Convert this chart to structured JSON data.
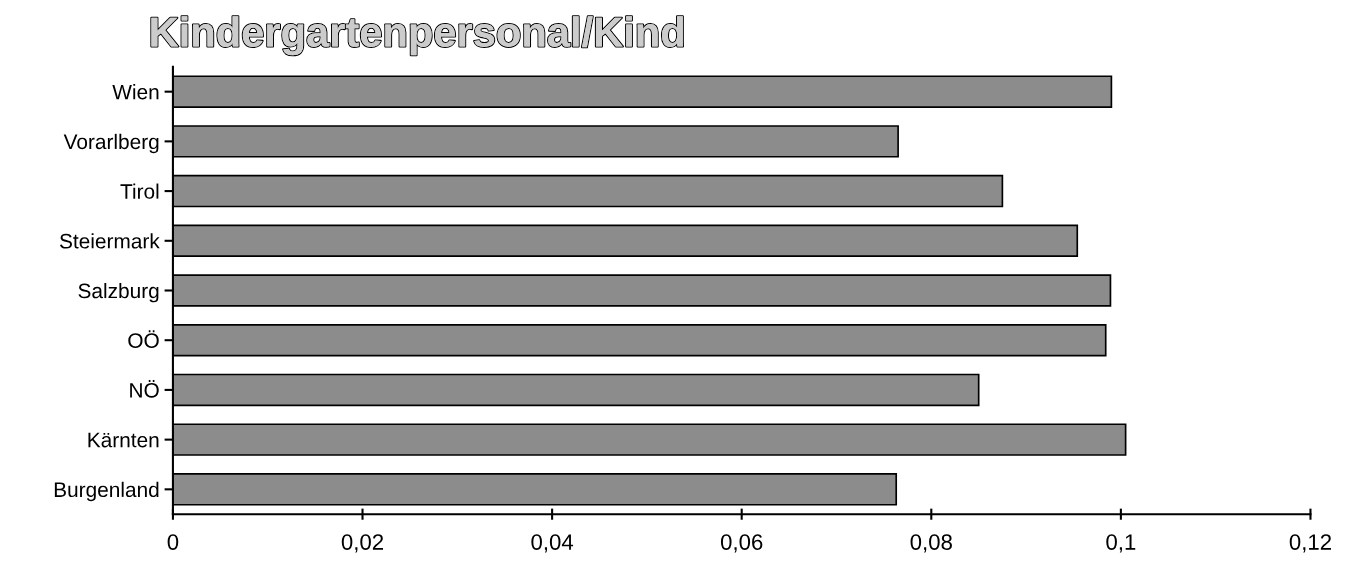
{
  "chart_data": {
    "type": "bar",
    "orientation": "horizontal",
    "title": "Kindergartenpersonal/Kind",
    "categories": [
      "Wien",
      "Vorarlberg",
      "Tirol",
      "Steiermark",
      "Salzburg",
      "OÖ",
      "NÖ",
      "Kärnten",
      "Burgenland"
    ],
    "values": [
      0.099,
      0.0765,
      0.0875,
      0.0954,
      0.0989,
      0.0984,
      0.085,
      0.1005,
      0.0763
    ],
    "color": "#8c8c8c",
    "xlim": [
      0,
      0.12
    ],
    "xticks": [
      0,
      {
        "value": 0.02,
        "label": "0,02"
      },
      {
        "value": 0.04,
        "label": "0,04"
      },
      {
        "value": 0.06,
        "label": "0,06"
      },
      {
        "value": 0.08,
        "label": "0,08"
      },
      {
        "value": 0.1,
        "label": "0,1"
      },
      {
        "value": 0.12,
        "label": "0,12"
      }
    ],
    "grid": false,
    "legend": false
  }
}
